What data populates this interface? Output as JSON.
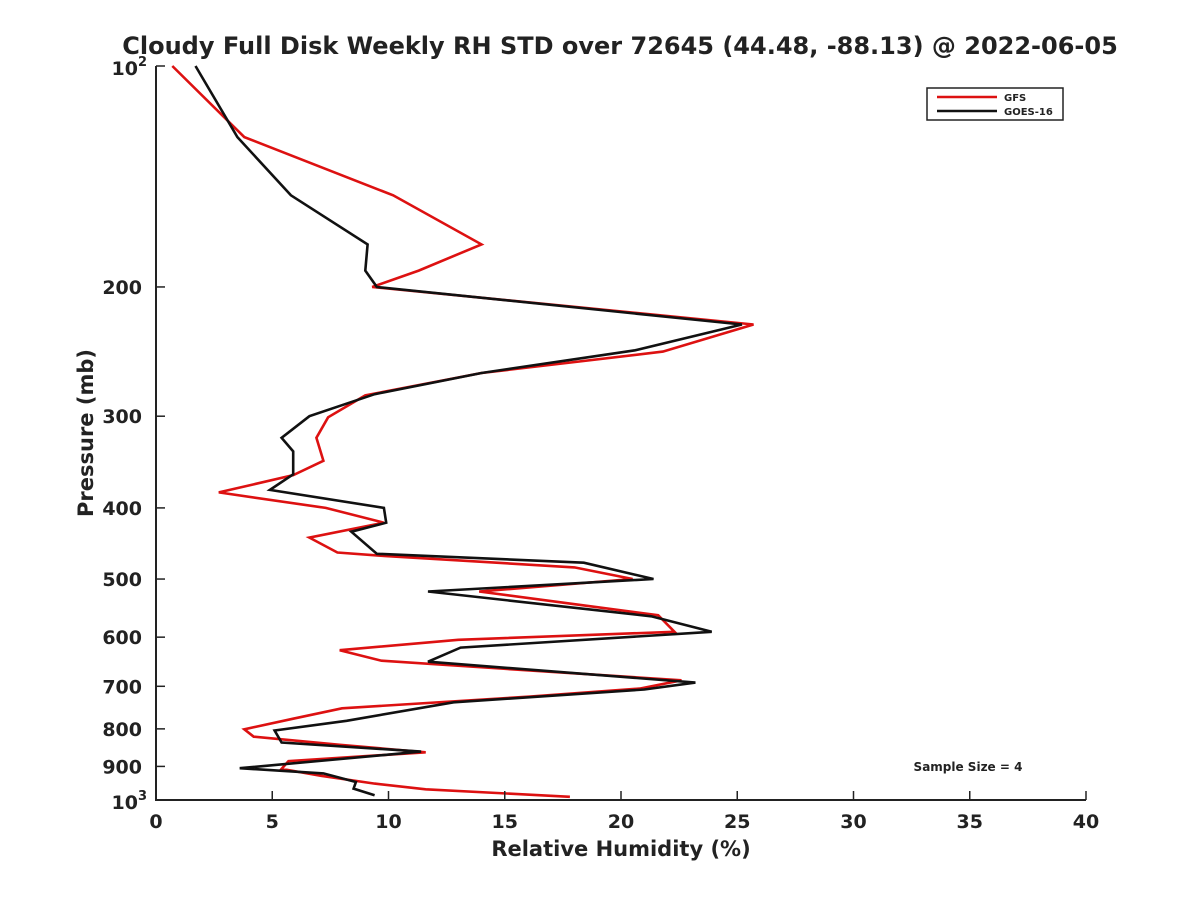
{
  "chart_data": {
    "type": "line",
    "title": "Cloudy Full Disk Weekly RH STD over 72645 (44.48, -88.13) @ 2022-06-05",
    "xlabel": "Relative Humidity (%)",
    "ylabel": "Pressure (mb)",
    "xlim": [
      0,
      40
    ],
    "ylim": [
      1000,
      100
    ],
    "y_scale": "log",
    "y_reversed": true,
    "grid": false,
    "legend_position": "top-right",
    "xticks": [
      0,
      5,
      10,
      15,
      20,
      25,
      30,
      35,
      40
    ],
    "yticks": [
      {
        "value": 100,
        "base": "10",
        "exp": "2"
      },
      {
        "value": 200,
        "label": "200"
      },
      {
        "value": 300,
        "label": "300"
      },
      {
        "value": 400,
        "label": "400"
      },
      {
        "value": 500,
        "label": "500"
      },
      {
        "value": 600,
        "label": "600"
      },
      {
        "value": 700,
        "label": "700"
      },
      {
        "value": 800,
        "label": "800"
      },
      {
        "value": 900,
        "label": "900"
      },
      {
        "value": 1000,
        "base": "10",
        "exp": "3"
      }
    ],
    "annotation": "Sample Size = 4",
    "series": [
      {
        "name": "GFS",
        "color": "#dd1111",
        "points": [
          [
            0.7,
            100
          ],
          [
            3.8,
            125
          ],
          [
            10.2,
            150
          ],
          [
            14.0,
            175
          ],
          [
            11.3,
            190
          ],
          [
            9.3,
            200
          ],
          [
            25.7,
            225
          ],
          [
            21.8,
            245
          ],
          [
            14.0,
            262
          ],
          [
            9.0,
            281
          ],
          [
            7.4,
            301
          ],
          [
            6.9,
            321
          ],
          [
            7.2,
            345
          ],
          [
            5.9,
            361
          ],
          [
            2.7,
            381
          ],
          [
            7.3,
            400
          ],
          [
            9.8,
            419
          ],
          [
            6.6,
            439
          ],
          [
            7.8,
            460
          ],
          [
            9.8,
            465
          ],
          [
            18.0,
            482
          ],
          [
            20.5,
            500
          ],
          [
            13.9,
            520
          ],
          [
            17.8,
            540
          ],
          [
            21.6,
            560
          ],
          [
            22.3,
            590
          ],
          [
            13.0,
            605
          ],
          [
            7.9,
            625
          ],
          [
            9.7,
            646
          ],
          [
            14.8,
            662
          ],
          [
            22.6,
            687
          ],
          [
            20.8,
            705
          ],
          [
            16.1,
            723
          ],
          [
            8.0,
            750
          ],
          [
            5.9,
            775
          ],
          [
            3.8,
            801
          ],
          [
            4.2,
            820
          ],
          [
            7.9,
            841
          ],
          [
            11.6,
            861
          ],
          [
            5.7,
            885
          ],
          [
            5.4,
            907
          ],
          [
            7.1,
            927
          ],
          [
            9.4,
            950
          ],
          [
            11.6,
            967
          ],
          [
            17.8,
            990
          ]
        ]
      },
      {
        "name": "GOES-16",
        "color": "#111111",
        "points": [
          [
            1.7,
            100
          ],
          [
            3.5,
            125
          ],
          [
            5.8,
            150
          ],
          [
            9.1,
            175
          ],
          [
            9.0,
            190
          ],
          [
            9.5,
            200
          ],
          [
            25.2,
            225
          ],
          [
            20.6,
            244
          ],
          [
            14.0,
            262
          ],
          [
            9.4,
            280
          ],
          [
            6.6,
            300
          ],
          [
            5.4,
            321
          ],
          [
            5.9,
            335
          ],
          [
            5.9,
            360
          ],
          [
            4.9,
            378
          ],
          [
            9.8,
            400
          ],
          [
            9.9,
            419
          ],
          [
            8.4,
            431
          ],
          [
            9.5,
            462
          ],
          [
            18.4,
            475
          ],
          [
            21.4,
            500
          ],
          [
            11.7,
            520
          ],
          [
            21.3,
            562
          ],
          [
            23.9,
            590
          ],
          [
            13.1,
            620
          ],
          [
            11.7,
            648
          ],
          [
            23.2,
            692
          ],
          [
            21.0,
            707
          ],
          [
            12.8,
            736
          ],
          [
            8.2,
            780
          ],
          [
            5.1,
            804
          ],
          [
            5.4,
            835
          ],
          [
            11.4,
            859
          ],
          [
            3.6,
            905
          ],
          [
            7.2,
            920
          ],
          [
            8.6,
            945
          ],
          [
            8.5,
            965
          ],
          [
            9.4,
            985
          ]
        ]
      }
    ]
  }
}
